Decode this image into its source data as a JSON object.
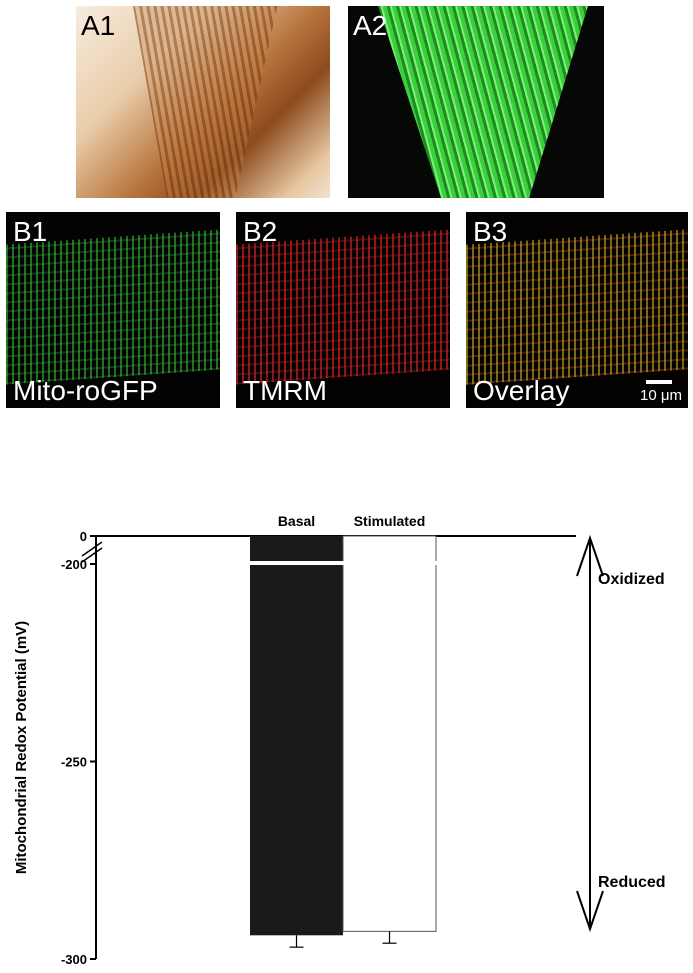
{
  "panels_a": [
    {
      "label": "A1"
    },
    {
      "label": "A2"
    }
  ],
  "panels_b": [
    {
      "label": "B1",
      "caption": "Mito-roGFP"
    },
    {
      "label": "B2",
      "caption": "TMRM"
    },
    {
      "label": "B3",
      "caption": "Overlay",
      "scale_bar_label": "10 μm"
    }
  ],
  "chart_data": {
    "type": "bar",
    "categories": [
      "Basal",
      "Stimulated"
    ],
    "values": [
      -294,
      -293
    ],
    "errors": [
      3,
      3
    ],
    "bar_colors": [
      "#1a1a1a",
      "#ffffff"
    ],
    "ylabel": "Mitochondrial Redox Potential (mV)",
    "yticks": [
      0,
      -200,
      -250,
      -300
    ],
    "ylim": [
      -300,
      0
    ],
    "axis_break": [
      0,
      -200
    ],
    "annotations": {
      "top": "Oxidized",
      "bottom": "Reduced"
    }
  }
}
